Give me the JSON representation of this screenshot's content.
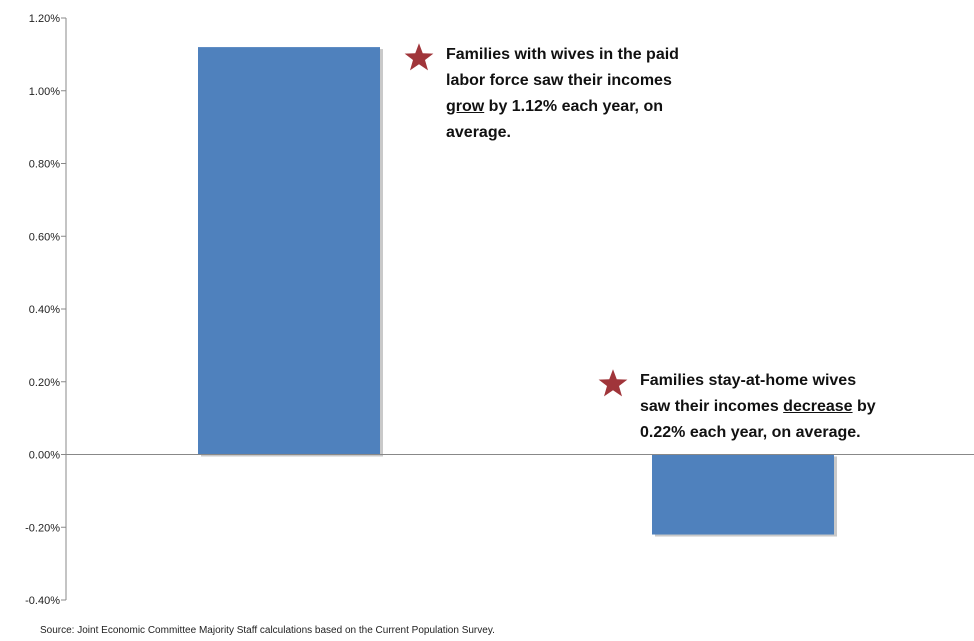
{
  "chart_data": {
    "type": "bar",
    "categories": [
      "",
      ""
    ],
    "values": [
      1.12,
      -0.22
    ],
    "value_format": "percent",
    "ylim": [
      -0.4,
      1.2
    ],
    "yticks": [
      1.2,
      1.0,
      0.8,
      0.6,
      0.4,
      0.2,
      0.0,
      -0.2,
      -0.4
    ],
    "ytick_labels": [
      "1.20%",
      "1.00%",
      "0.80%",
      "0.60%",
      "0.40%",
      "0.20%",
      "0.00%",
      "-0.20%",
      "-0.40%"
    ],
    "title": "",
    "xlabel": "",
    "ylabel": "",
    "grid": false,
    "legend": "none",
    "bar_color": "#4F81BD",
    "annotations": [
      {
        "line1": "Families with wives in the paid",
        "line2": "labor force saw their incomes",
        "line3_em": "grow",
        "line3_rest": " by 1.12% each year, on",
        "line4": "average."
      },
      {
        "line1": "Families stay-at-home wives",
        "line2_pre": "saw their incomes ",
        "line2_em": "decrease",
        "line2_post": " by",
        "line3": "0.22% each year, on average."
      }
    ],
    "star_color": "#A0353A"
  },
  "source": "Source: Joint Economic Committee Majority Staff calculations based on the Current Population Survey."
}
